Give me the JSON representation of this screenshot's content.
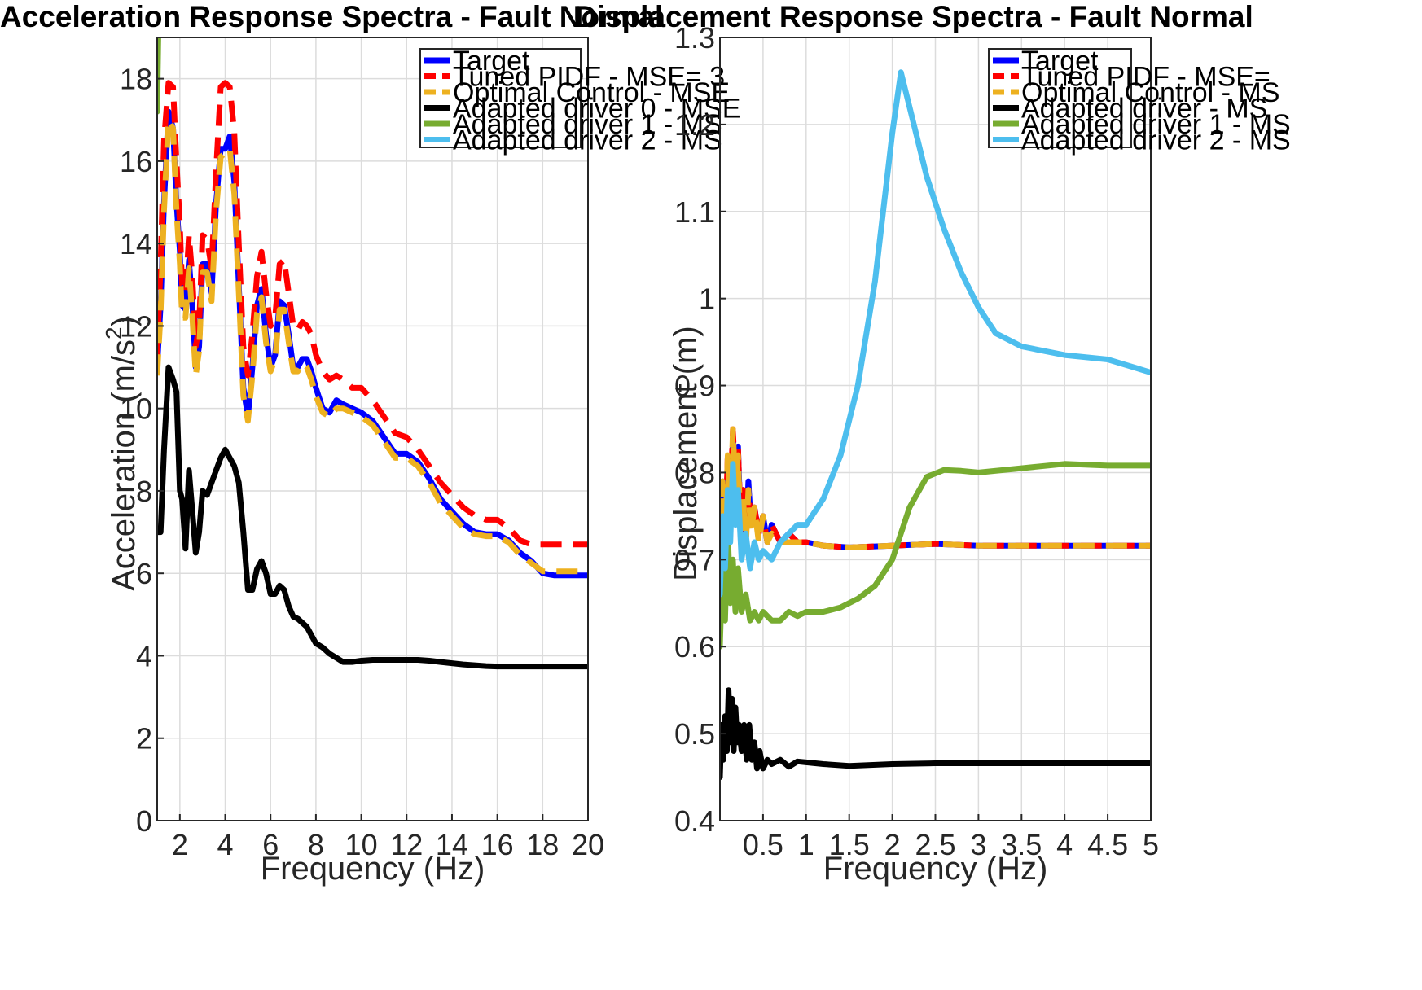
{
  "chart_data": [
    {
      "type": "line",
      "title": "Acceleration Response Spectra - Fault Normal",
      "xlabel": "Frequency (Hz)",
      "ylabel": "Acceleration (m/s²)",
      "xlim": [
        1,
        20
      ],
      "ylim": [
        0,
        19
      ],
      "xticks": [
        2,
        4,
        6,
        8,
        10,
        12,
        14,
        16,
        18,
        20
      ],
      "yticks": [
        0,
        2,
        4,
        6,
        8,
        10,
        12,
        14,
        16,
        18
      ],
      "grid": true,
      "legend_position": "top-right",
      "series": [
        {
          "name": "Target",
          "color": "#0000ff",
          "style": "solid",
          "x": [
            1.0,
            1.15,
            1.3,
            1.5,
            1.7,
            1.85,
            2.0,
            2.1,
            2.25,
            2.4,
            2.55,
            2.7,
            2.85,
            3.0,
            3.2,
            3.4,
            3.6,
            3.8,
            4.0,
            4.2,
            4.4,
            4.6,
            4.8,
            5.0,
            5.2,
            5.4,
            5.6,
            5.8,
            6.0,
            6.2,
            6.4,
            6.6,
            6.8,
            7.0,
            7.2,
            7.4,
            7.6,
            7.8,
            8.0,
            8.3,
            8.6,
            8.9,
            9.2,
            9.6,
            10.0,
            10.5,
            11.0,
            11.5,
            12.0,
            12.5,
            13.0,
            13.5,
            14.0,
            14.5,
            15.0,
            15.5,
            16.0,
            16.5,
            17.0,
            17.5,
            18.0,
            18.5,
            19.0,
            19.5,
            20.0
          ],
          "y": [
            11.0,
            12.5,
            15.0,
            17.2,
            16.8,
            15.0,
            13.8,
            12.5,
            12.4,
            13.6,
            12.5,
            11.0,
            11.5,
            13.5,
            13.5,
            12.8,
            15.0,
            16.3,
            16.3,
            16.6,
            15.5,
            13.0,
            10.5,
            9.8,
            11.0,
            12.5,
            12.9,
            11.8,
            11.0,
            11.3,
            12.6,
            12.5,
            11.8,
            11.0,
            11.0,
            11.2,
            11.2,
            10.9,
            10.5,
            10.0,
            9.9,
            10.2,
            10.1,
            10.0,
            9.9,
            9.7,
            9.3,
            8.9,
            8.9,
            8.7,
            8.3,
            7.8,
            7.5,
            7.2,
            7.0,
            6.95,
            6.95,
            6.8,
            6.5,
            6.3,
            6.0,
            5.95,
            5.95,
            5.95,
            5.95
          ]
        },
        {
          "name": "Tuned PIDF - MSE= 3",
          "color": "#ff0000",
          "style": "dashed",
          "x": [
            1.0,
            1.15,
            1.3,
            1.5,
            1.7,
            1.85,
            2.0,
            2.1,
            2.25,
            2.4,
            2.55,
            2.7,
            2.85,
            3.0,
            3.2,
            3.4,
            3.6,
            3.8,
            4.0,
            4.2,
            4.4,
            4.6,
            4.8,
            5.0,
            5.2,
            5.4,
            5.6,
            5.8,
            6.0,
            6.2,
            6.4,
            6.6,
            6.8,
            7.0,
            7.2,
            7.4,
            7.6,
            7.8,
            8.0,
            8.3,
            8.6,
            8.9,
            9.2,
            9.6,
            10.0,
            10.5,
            11.0,
            11.5,
            12.0,
            12.5,
            13.0,
            13.5,
            14.0,
            14.5,
            15.0,
            15.5,
            16.0,
            16.5,
            17.0,
            17.5,
            18.0,
            18.5,
            19.0,
            19.5,
            20.0
          ],
          "y": [
            11.3,
            13.5,
            16.5,
            17.9,
            17.8,
            16.0,
            14.5,
            13.0,
            12.8,
            14.2,
            13.2,
            11.5,
            12.0,
            14.2,
            14.1,
            13.4,
            15.8,
            17.8,
            17.9,
            17.8,
            16.7,
            14.0,
            11.5,
            10.8,
            11.8,
            13.2,
            13.8,
            12.8,
            12.0,
            12.2,
            13.5,
            13.6,
            12.8,
            12.0,
            11.9,
            12.1,
            12.0,
            11.8,
            11.3,
            10.9,
            10.7,
            10.8,
            10.7,
            10.5,
            10.5,
            10.2,
            9.8,
            9.4,
            9.3,
            9.0,
            8.6,
            8.2,
            7.9,
            7.6,
            7.4,
            7.3,
            7.3,
            7.1,
            6.8,
            6.7,
            6.7,
            6.7,
            6.7,
            6.7,
            6.7
          ]
        },
        {
          "name": "Optimal Control - MSE",
          "color": "#edb120",
          "style": "dashed",
          "x": [
            1.0,
            1.15,
            1.3,
            1.5,
            1.7,
            1.85,
            2.0,
            2.1,
            2.25,
            2.4,
            2.55,
            2.7,
            2.85,
            3.0,
            3.2,
            3.4,
            3.6,
            3.8,
            4.0,
            4.2,
            4.4,
            4.6,
            4.8,
            5.0,
            5.2,
            5.4,
            5.6,
            5.8,
            6.0,
            6.2,
            6.4,
            6.6,
            6.8,
            7.0,
            7.2,
            7.4,
            7.6,
            7.8,
            8.0,
            8.3,
            8.6,
            8.9,
            9.2,
            9.6,
            10.0,
            10.5,
            11.0,
            11.5,
            12.0,
            12.5,
            13.0,
            13.5,
            14.0,
            14.5,
            15.0,
            15.5,
            16.0,
            16.5,
            17.0,
            17.5,
            18.0,
            18.5,
            19.0,
            19.5,
            20.0
          ],
          "y": [
            10.8,
            12.3,
            14.8,
            17.0,
            16.8,
            14.8,
            13.5,
            12.2,
            12.2,
            13.4,
            12.2,
            10.8,
            11.4,
            13.3,
            13.3,
            12.6,
            14.8,
            16.1,
            16.2,
            16.3,
            15.2,
            12.8,
            10.3,
            9.7,
            10.8,
            12.3,
            12.7,
            11.6,
            10.9,
            11.2,
            12.4,
            12.4,
            11.6,
            10.9,
            10.9,
            11.1,
            11.0,
            10.7,
            10.3,
            9.9,
            9.8,
            10.0,
            10.0,
            9.9,
            9.8,
            9.6,
            9.2,
            8.8,
            8.8,
            8.6,
            8.2,
            7.7,
            7.4,
            7.1,
            6.95,
            6.9,
            6.9,
            6.75,
            6.45,
            6.25,
            6.05,
            6.05,
            6.05,
            6.05,
            6.05
          ]
        },
        {
          "name": "Adapted driver 0 - MSE",
          "color": "#000000",
          "style": "solid",
          "x": [
            1.0,
            1.15,
            1.3,
            1.5,
            1.7,
            1.85,
            2.0,
            2.1,
            2.25,
            2.4,
            2.55,
            2.7,
            2.85,
            3.0,
            3.2,
            3.4,
            3.6,
            3.8,
            4.0,
            4.2,
            4.4,
            4.6,
            4.8,
            5.0,
            5.2,
            5.4,
            5.6,
            5.8,
            6.0,
            6.2,
            6.4,
            6.6,
            6.8,
            7.0,
            7.2,
            7.4,
            7.6,
            7.8,
            8.0,
            8.3,
            8.6,
            8.9,
            9.2,
            9.6,
            10.0,
            10.5,
            11.0,
            11.5,
            12.0,
            12.5,
            13.0,
            13.5,
            14.0,
            14.5,
            15.0,
            15.5,
            16.0,
            16.5,
            17.0,
            17.5,
            18.0,
            18.5,
            19.0,
            19.5,
            20.0
          ],
          "y": [
            7.0,
            7.0,
            9.0,
            11.0,
            10.7,
            10.4,
            8.0,
            7.8,
            6.6,
            8.5,
            7.5,
            6.5,
            7.0,
            8.0,
            7.9,
            8.2,
            8.5,
            8.8,
            9.0,
            8.8,
            8.6,
            8.2,
            7.0,
            5.6,
            5.6,
            6.1,
            6.3,
            6.0,
            5.5,
            5.5,
            5.7,
            5.6,
            5.2,
            4.95,
            4.9,
            4.8,
            4.7,
            4.5,
            4.3,
            4.2,
            4.05,
            3.95,
            3.85,
            3.85,
            3.88,
            3.9,
            3.9,
            3.9,
            3.9,
            3.9,
            3.88,
            3.85,
            3.82,
            3.79,
            3.77,
            3.75,
            3.74,
            3.74,
            3.74,
            3.74,
            3.74,
            3.74,
            3.74,
            3.74,
            3.74
          ]
        },
        {
          "name": "Adapted driver 1 - MS",
          "color": "#77ac30",
          "style": "solid",
          "x": [
            1.0,
            1.05
          ],
          "y": [
            17.2,
            19.0
          ]
        },
        {
          "name": "Adapted driver 2 - MS",
          "color": "#4dbeee",
          "style": "solid",
          "x": [],
          "y": []
        }
      ]
    },
    {
      "type": "line",
      "title": "Displacement Response Spectra - Fault Normal",
      "xlabel": "Frequency (Hz)",
      "ylabel": "Displacement (m)",
      "xlim": [
        0,
        5
      ],
      "ylim": [
        0.4,
        1.3
      ],
      "xticks": [
        0.5,
        1,
        1.5,
        2,
        2.5,
        3,
        3.5,
        4,
        4.5,
        5
      ],
      "xticklabels": [
        "0.5",
        "1",
        "1.5",
        "2",
        "2.5",
        "3",
        "3.5",
        "4",
        "4.5",
        "5"
      ],
      "yticks": [
        0.4,
        0.5,
        0.6,
        0.7,
        0.8,
        0.9,
        1.0,
        1.1,
        1.2,
        1.3
      ],
      "yticklabels": [
        "0.4",
        "0.5",
        "0.6",
        "0.7",
        "0.8",
        "0.9",
        "1",
        "1.1",
        "1.2",
        "1.3"
      ],
      "grid": true,
      "legend_position": "top-right",
      "series": [
        {
          "name": "Target",
          "color": "#0000ff",
          "style": "solid",
          "x": [
            0.0,
            0.03,
            0.06,
            0.09,
            0.12,
            0.15,
            0.18,
            0.21,
            0.24,
            0.27,
            0.3,
            0.33,
            0.36,
            0.4,
            0.45,
            0.5,
            0.55,
            0.6,
            0.7,
            0.8,
            0.9,
            1.0,
            1.2,
            1.5,
            2.0,
            2.5,
            3.0,
            3.5,
            4.0,
            4.5,
            5.0
          ],
          "y": [
            0.67,
            0.78,
            0.72,
            0.81,
            0.76,
            0.84,
            0.79,
            0.83,
            0.74,
            0.78,
            0.72,
            0.79,
            0.74,
            0.76,
            0.73,
            0.75,
            0.72,
            0.74,
            0.72,
            0.73,
            0.72,
            0.72,
            0.716,
            0.714,
            0.716,
            0.718,
            0.716,
            0.716,
            0.716,
            0.716,
            0.716
          ]
        },
        {
          "name": "Tuned PIDF - MSE=",
          "color": "#ff0000",
          "style": "dashed",
          "x": [
            0.0,
            0.03,
            0.06,
            0.09,
            0.12,
            0.15,
            0.18,
            0.21,
            0.24,
            0.27,
            0.3,
            0.33,
            0.36,
            0.4,
            0.45,
            0.5,
            0.55,
            0.6,
            0.7,
            0.8,
            0.9,
            1.0,
            1.2,
            1.5,
            2.0,
            2.5,
            3.0,
            3.5,
            4.0,
            4.5,
            5.0
          ],
          "y": [
            0.67,
            0.79,
            0.72,
            0.82,
            0.77,
            0.85,
            0.79,
            0.83,
            0.74,
            0.78,
            0.72,
            0.78,
            0.74,
            0.76,
            0.73,
            0.75,
            0.72,
            0.74,
            0.72,
            0.73,
            0.72,
            0.72,
            0.716,
            0.714,
            0.716,
            0.718,
            0.716,
            0.716,
            0.716,
            0.716,
            0.716
          ]
        },
        {
          "name": "Optimal Control - MS",
          "color": "#edb120",
          "style": "dashed",
          "x": [
            0.0,
            0.03,
            0.06,
            0.09,
            0.12,
            0.15,
            0.18,
            0.21,
            0.24,
            0.27,
            0.3,
            0.33,
            0.36,
            0.4,
            0.45,
            0.5,
            0.55,
            0.6,
            0.7,
            0.8,
            0.9,
            1.0,
            1.2,
            1.5,
            2.0,
            2.5,
            3.0,
            3.5,
            4.0,
            4.5,
            5.0
          ],
          "y": [
            0.66,
            0.79,
            0.71,
            0.82,
            0.76,
            0.85,
            0.78,
            0.82,
            0.73,
            0.77,
            0.71,
            0.78,
            0.73,
            0.76,
            0.72,
            0.75,
            0.72,
            0.73,
            0.72,
            0.72,
            0.72,
            0.72,
            0.716,
            0.714,
            0.716,
            0.718,
            0.716,
            0.716,
            0.716,
            0.716,
            0.716
          ]
        },
        {
          "name": "Adapted driver - MS",
          "color": "#000000",
          "style": "solid",
          "x": [
            0.0,
            0.02,
            0.04,
            0.06,
            0.08,
            0.1,
            0.12,
            0.14,
            0.16,
            0.18,
            0.2,
            0.22,
            0.25,
            0.28,
            0.31,
            0.34,
            0.37,
            0.4,
            0.43,
            0.46,
            0.5,
            0.55,
            0.6,
            0.7,
            0.8,
            0.9,
            1.0,
            1.2,
            1.5,
            2.0,
            2.5,
            3.0,
            3.5,
            4.0,
            4.5,
            5.0
          ],
          "y": [
            0.45,
            0.51,
            0.47,
            0.52,
            0.48,
            0.55,
            0.49,
            0.54,
            0.48,
            0.53,
            0.49,
            0.51,
            0.48,
            0.51,
            0.47,
            0.51,
            0.47,
            0.49,
            0.46,
            0.48,
            0.46,
            0.47,
            0.465,
            0.47,
            0.462,
            0.468,
            0.467,
            0.465,
            0.463,
            0.465,
            0.466,
            0.466,
            0.466,
            0.466,
            0.466,
            0.466
          ]
        },
        {
          "name": "Adapted driver 1 - MS",
          "color": "#77ac30",
          "style": "solid",
          "x": [
            0.0,
            0.03,
            0.06,
            0.09,
            0.12,
            0.15,
            0.18,
            0.21,
            0.25,
            0.3,
            0.35,
            0.4,
            0.45,
            0.5,
            0.6,
            0.7,
            0.8,
            0.9,
            1.0,
            1.2,
            1.4,
            1.6,
            1.8,
            2.0,
            2.2,
            2.4,
            2.6,
            2.8,
            3.0,
            3.5,
            4.0,
            4.5,
            5.0
          ],
          "y": [
            0.6,
            0.7,
            0.63,
            0.74,
            0.65,
            0.7,
            0.64,
            0.69,
            0.64,
            0.66,
            0.63,
            0.64,
            0.63,
            0.64,
            0.63,
            0.63,
            0.64,
            0.635,
            0.64,
            0.64,
            0.645,
            0.655,
            0.67,
            0.7,
            0.76,
            0.795,
            0.803,
            0.802,
            0.8,
            0.805,
            0.81,
            0.808,
            0.808
          ]
        },
        {
          "name": "Adapted driver 2 - MS",
          "color": "#4dbeee",
          "style": "solid",
          "x": [
            0.0,
            0.03,
            0.06,
            0.09,
            0.12,
            0.15,
            0.18,
            0.21,
            0.25,
            0.3,
            0.35,
            0.4,
            0.45,
            0.5,
            0.6,
            0.7,
            0.8,
            0.9,
            1.0,
            1.2,
            1.4,
            1.6,
            1.8,
            2.0,
            2.1,
            2.2,
            2.4,
            2.6,
            2.8,
            3.0,
            3.2,
            3.5,
            4.0,
            4.5,
            5.0
          ],
          "y": [
            0.66,
            0.75,
            0.69,
            0.78,
            0.72,
            0.81,
            0.74,
            0.78,
            0.7,
            0.73,
            0.69,
            0.72,
            0.7,
            0.71,
            0.7,
            0.72,
            0.73,
            0.74,
            0.74,
            0.77,
            0.82,
            0.9,
            1.02,
            1.19,
            1.26,
            1.22,
            1.14,
            1.08,
            1.03,
            0.99,
            0.96,
            0.945,
            0.935,
            0.93,
            0.915
          ]
        }
      ]
    }
  ]
}
